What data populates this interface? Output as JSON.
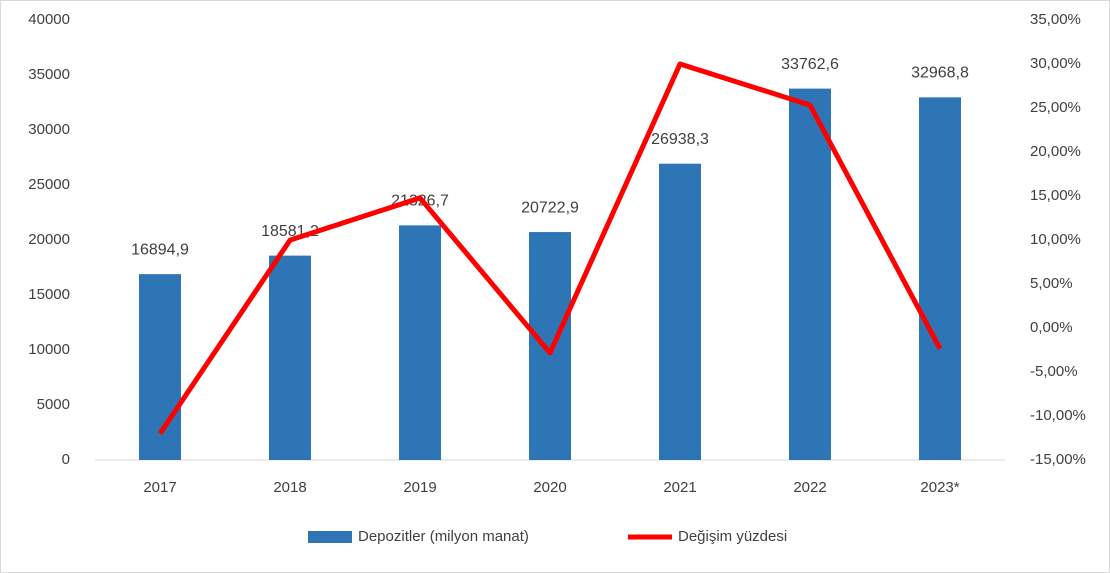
{
  "chart_data": {
    "type": "bar-line",
    "categories": [
      "2017",
      "2018",
      "2019",
      "2020",
      "2021",
      "2022",
      "2023*"
    ],
    "series": [
      {
        "name": "Depozitler (milyon manat)",
        "type": "bar",
        "color": "#2e75b6",
        "values": [
          16894.9,
          18581.2,
          21326.7,
          20722.9,
          26938.3,
          33762.6,
          32968.8
        ],
        "value_labels": [
          "16894,9",
          "18581,2",
          "21326,7",
          "20722,9",
          "26938,3",
          "33762,6",
          "32968,8"
        ]
      },
      {
        "name": "Değişim yüzdesi",
        "type": "line",
        "color": "#ff0000",
        "axis": "y2",
        "values": [
          -12,
          9.98,
          14.78,
          -2.83,
          30,
          25.33,
          -2.35
        ]
      }
    ],
    "ylim": [
      0,
      40000
    ],
    "yticks": [
      0,
      5000,
      10000,
      15000,
      20000,
      25000,
      30000,
      35000,
      40000
    ],
    "y2lim": [
      -15,
      35
    ],
    "y2ticks": [
      {
        "value": -15,
        "label": "-15,00%"
      },
      {
        "value": -10,
        "label": "-10,00%"
      },
      {
        "value": -5,
        "label": "-5,00%"
      },
      {
        "value": 0,
        "label": "0,00%"
      },
      {
        "value": 5,
        "label": "5,00%"
      },
      {
        "value": 10,
        "label": "10,00%"
      },
      {
        "value": 15,
        "label": "15,00%"
      },
      {
        "value": 20,
        "label": "20,00%"
      },
      {
        "value": 25,
        "label": "25,00%"
      },
      {
        "value": 30,
        "label": "30,00%"
      },
      {
        "value": 35,
        "label": "35,00%"
      }
    ],
    "legend": "bottom"
  }
}
